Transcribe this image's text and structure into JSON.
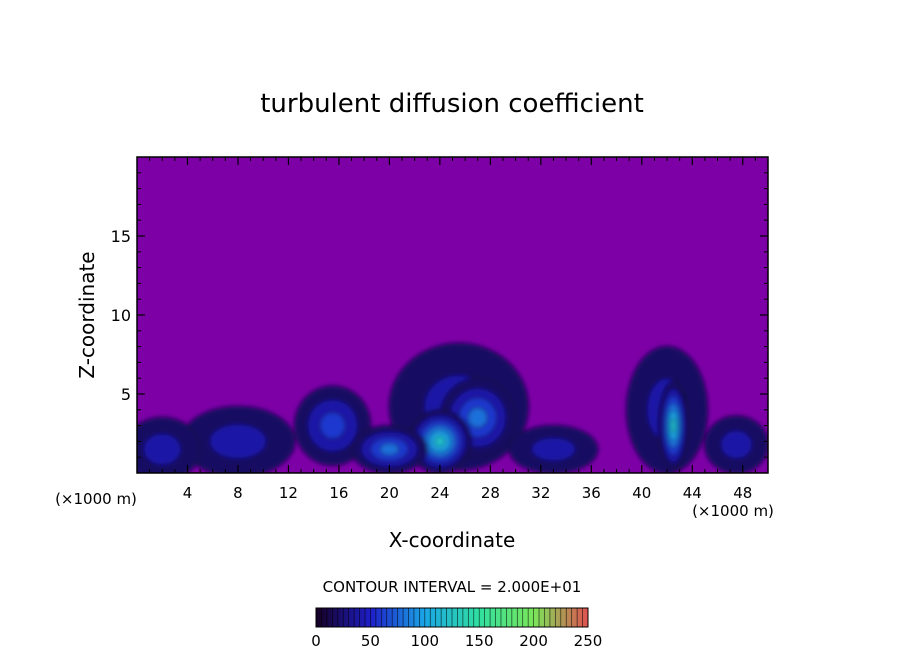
{
  "chart_data": {
    "type": "heatmap",
    "title": "turbulent diffusion coefficient",
    "xlabel": "X-coordinate",
    "ylabel": "Z-coordinate",
    "x_unit": "(×1000 m)",
    "z_unit": "(×1000 m)",
    "xlim": [
      0,
      50
    ],
    "ylim": [
      0,
      20
    ],
    "x_ticks": [
      4,
      8,
      12,
      16,
      20,
      24,
      28,
      32,
      36,
      40,
      44,
      48
    ],
    "y_ticks": [
      5,
      10,
      15
    ],
    "contour_interval_text": "CONTOUR INTERVAL = 2.000E+01",
    "colorbar": {
      "min": 0,
      "max": 250,
      "ticks": [
        0,
        50,
        100,
        150,
        200,
        250
      ],
      "colors": [
        "#160022",
        "#1e1ec8",
        "#1aa6e6",
        "#30e0a0",
        "#7ae65a",
        "#e05050"
      ]
    },
    "background_color": "#7c00a6",
    "field": {
      "description_units": "x in 1000 m, z in 1000 m, value in coefficient units",
      "blobs": [
        {
          "cx": 25.5,
          "cz": 4.2,
          "rx": 5.5,
          "rz": 4.0,
          "value": 55
        },
        {
          "cx": 27.0,
          "cz": 3.5,
          "rx": 3.0,
          "rz": 2.5,
          "value": 90
        },
        {
          "cx": 24.0,
          "cz": 2.0,
          "rx": 2.5,
          "rz": 2.0,
          "value": 120
        },
        {
          "cx": 42.0,
          "cz": 4.0,
          "rx": 3.2,
          "rz": 4.0,
          "value": 50
        },
        {
          "cx": 42.5,
          "cz": 3.0,
          "rx": 1.2,
          "rz": 2.8,
          "value": 130
        },
        {
          "cx": 15.5,
          "cz": 3.0,
          "rx": 3.0,
          "rz": 2.5,
          "value": 60
        },
        {
          "cx": 8.0,
          "cz": 2.0,
          "rx": 4.5,
          "rz": 2.2,
          "value": 55
        },
        {
          "cx": 2.0,
          "cz": 1.5,
          "rx": 3.0,
          "rz": 2.0,
          "value": 50
        },
        {
          "cx": 33.0,
          "cz": 1.5,
          "rx": 3.5,
          "rz": 1.5,
          "value": 45
        },
        {
          "cx": 47.5,
          "cz": 1.8,
          "rx": 2.5,
          "rz": 1.8,
          "value": 55
        },
        {
          "cx": 20.0,
          "cz": 1.5,
          "rx": 3.0,
          "rz": 1.5,
          "value": 80
        }
      ]
    }
  }
}
